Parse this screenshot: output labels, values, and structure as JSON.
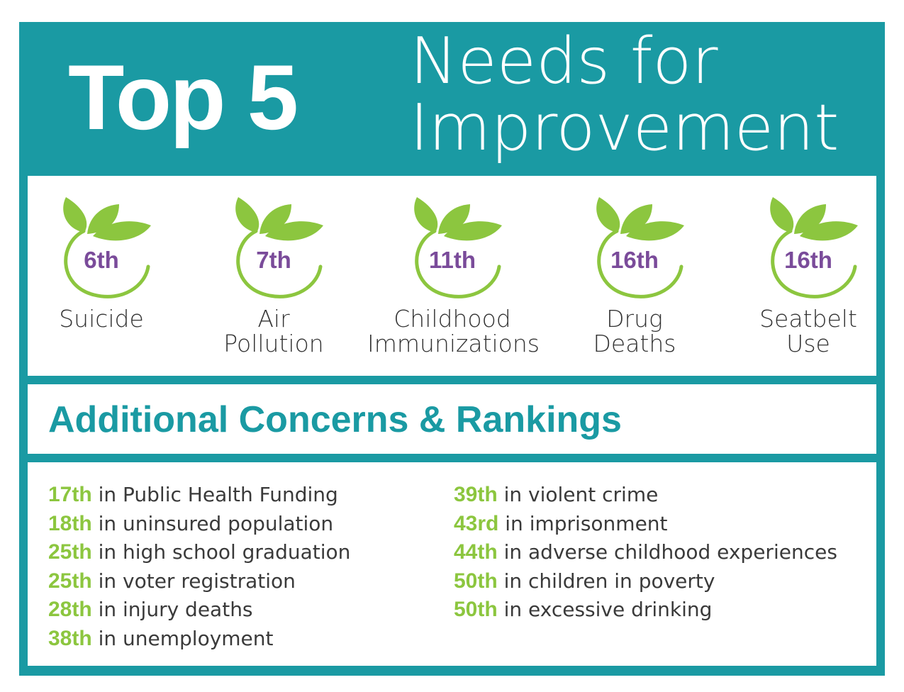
{
  "header": {
    "top": "Top 5",
    "needs_line1": "Needs for",
    "needs_line2": "Improvement"
  },
  "colors": {
    "teal": "#1a9aa3",
    "leaf_green": "#8cc63f",
    "rank_purple": "#7a4b9a"
  },
  "needs": [
    {
      "rank": "6th",
      "label_line1": "Suicide",
      "label_line2": "",
      "icon": "leaf-swirl-icon"
    },
    {
      "rank": "7th",
      "label_line1": "Air",
      "label_line2": "Pollution",
      "icon": "leaf-swirl-icon"
    },
    {
      "rank": "11th",
      "label_line1": "Childhood",
      "label_line2": "Immunizations",
      "icon": "leaf-swirl-icon"
    },
    {
      "rank": "16th",
      "label_line1": "Drug",
      "label_line2": "Deaths",
      "icon": "leaf-swirl-icon"
    },
    {
      "rank": "16th",
      "label_line1": "Seatbelt",
      "label_line2": "Use",
      "icon": "leaf-swirl-icon"
    }
  ],
  "additional": {
    "title": "Additional Concerns & Rankings",
    "left": [
      {
        "rank": "17th",
        "text": "in Public Health Funding"
      },
      {
        "rank": "18th",
        "text": "in uninsured population"
      },
      {
        "rank": "25th",
        "text": "in high school graduation"
      },
      {
        "rank": "25th",
        "text": "in voter registration"
      },
      {
        "rank": "28th",
        "text": "in injury deaths"
      },
      {
        "rank": "38th",
        "text": "in unemployment"
      }
    ],
    "right": [
      {
        "rank": "39th",
        "text": "in violent crime"
      },
      {
        "rank": "43rd",
        "text": "in imprisonment"
      },
      {
        "rank": "44th",
        "text": "in adverse childhood experiences"
      },
      {
        "rank": "50th",
        "text": "in children in poverty"
      },
      {
        "rank": "50th",
        "text": "in excessive drinking"
      }
    ]
  }
}
